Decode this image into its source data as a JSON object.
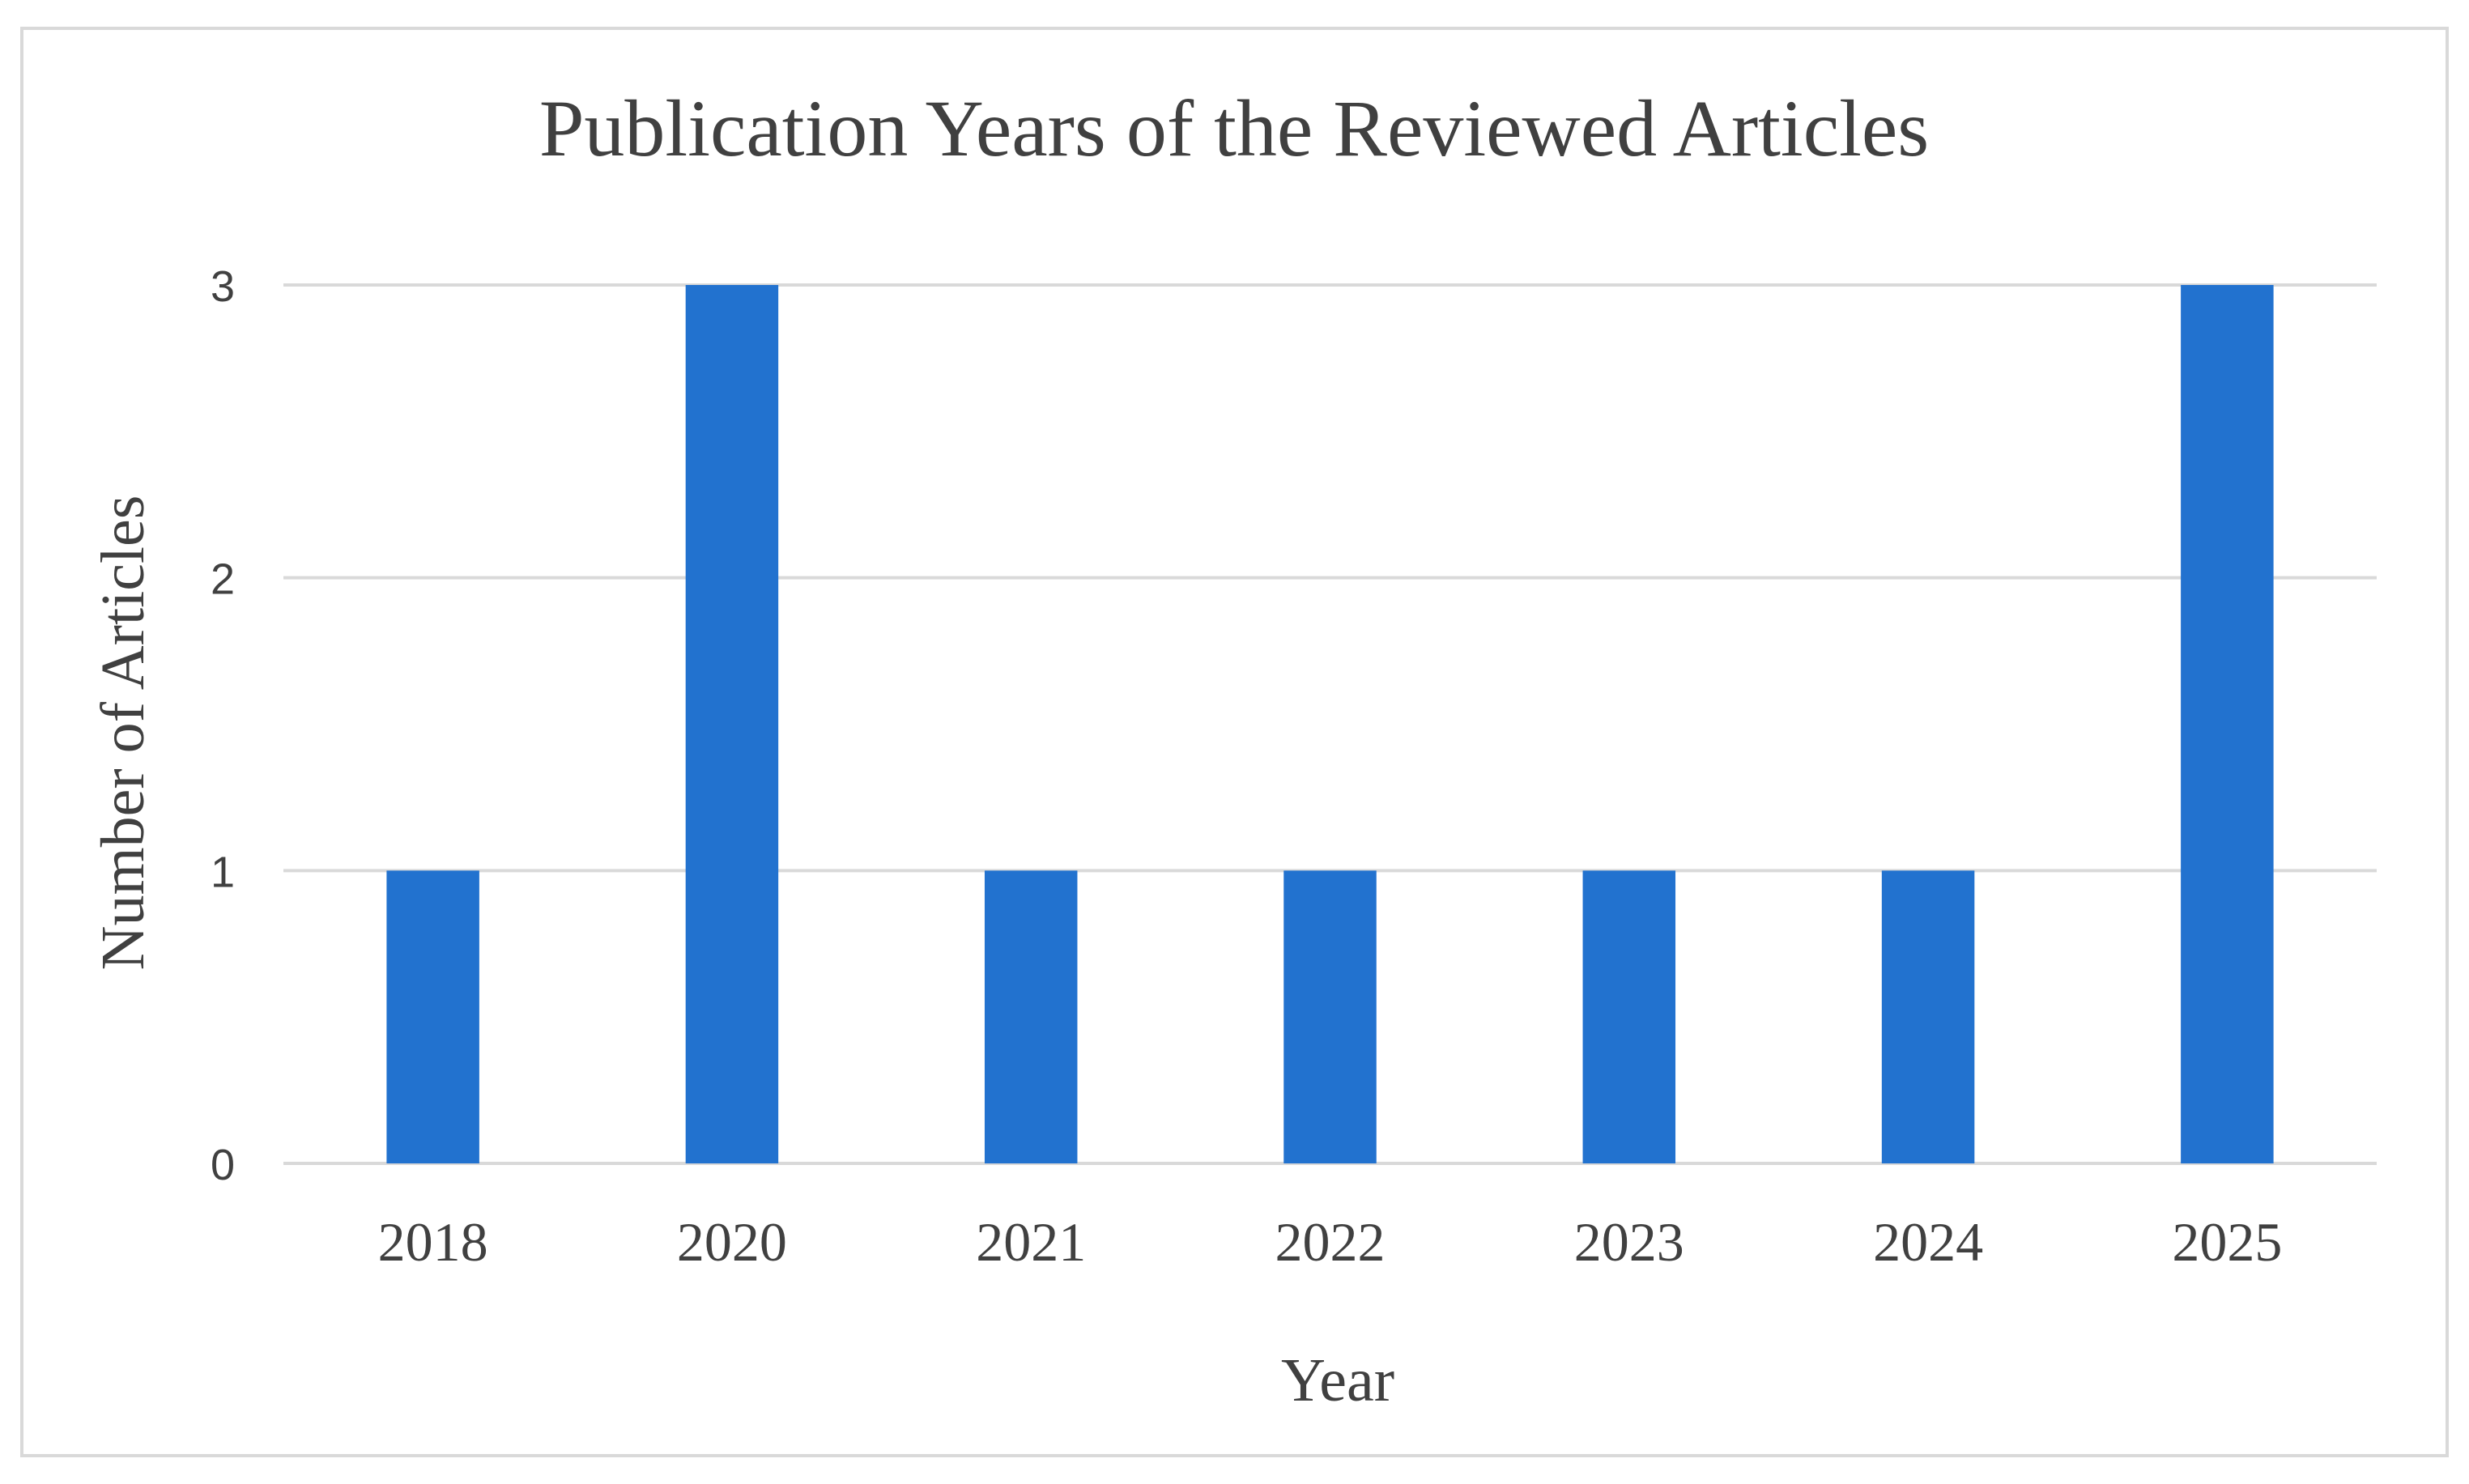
{
  "chart_data": {
    "type": "bar",
    "title": "Publication Years of the Reviewed Articles",
    "xlabel": "Year",
    "ylabel": "Number of Articles",
    "categories": [
      "2018",
      "2020",
      "2021",
      "2022",
      "2023",
      "2024",
      "2025"
    ],
    "values": [
      1,
      3,
      1,
      1,
      1,
      1,
      3
    ],
    "ylim": [
      0,
      3
    ],
    "yticks": [
      "0",
      "1",
      "2",
      "3"
    ],
    "grid": true,
    "legend": "none",
    "bar_color": "#2272cf",
    "gridline_color": "#d9d9d9",
    "text_color": "#404040"
  }
}
